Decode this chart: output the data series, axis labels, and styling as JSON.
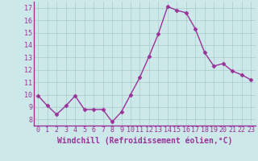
{
  "x": [
    0,
    1,
    2,
    3,
    4,
    5,
    6,
    7,
    8,
    9,
    10,
    11,
    12,
    13,
    14,
    15,
    16,
    17,
    18,
    19,
    20,
    21,
    22,
    23
  ],
  "y": [
    9.9,
    9.1,
    8.4,
    9.1,
    9.9,
    8.8,
    8.8,
    8.8,
    7.8,
    8.6,
    10.0,
    11.4,
    13.1,
    14.9,
    17.1,
    16.8,
    16.6,
    15.3,
    13.4,
    12.3,
    12.5,
    11.9,
    11.6,
    11.2
  ],
  "line_color": "#993399",
  "marker": "D",
  "marker_size": 2.5,
  "bg_color": "#cce8e8",
  "grid_color": "#aacccc",
  "xlabel": "Windchill (Refroidissement éolien,°C)",
  "xlabel_color": "#993399",
  "tick_color": "#993399",
  "ylim": [
    7.5,
    17.5
  ],
  "yticks": [
    8,
    9,
    10,
    11,
    12,
    13,
    14,
    15,
    16,
    17
  ],
  "xlim": [
    -0.5,
    23.5
  ],
  "xticks": [
    0,
    1,
    2,
    3,
    4,
    5,
    6,
    7,
    8,
    9,
    10,
    11,
    12,
    13,
    14,
    15,
    16,
    17,
    18,
    19,
    20,
    21,
    22,
    23
  ],
  "xtick_labels": [
    "0",
    "1",
    "2",
    "3",
    "4",
    "5",
    "6",
    "7",
    "8",
    "9",
    "10",
    "11",
    "12",
    "13",
    "14",
    "15",
    "16",
    "17",
    "18",
    "19",
    "20",
    "21",
    "22",
    "23"
  ],
  "ytick_labels": [
    "8",
    "9",
    "10",
    "11",
    "12",
    "13",
    "14",
    "15",
    "16",
    "17"
  ],
  "xlabel_fontsize": 7.0,
  "tick_fontsize": 6.0,
  "linewidth": 1.0,
  "spine_color": "#993399",
  "spine_linewidth": 1.0
}
